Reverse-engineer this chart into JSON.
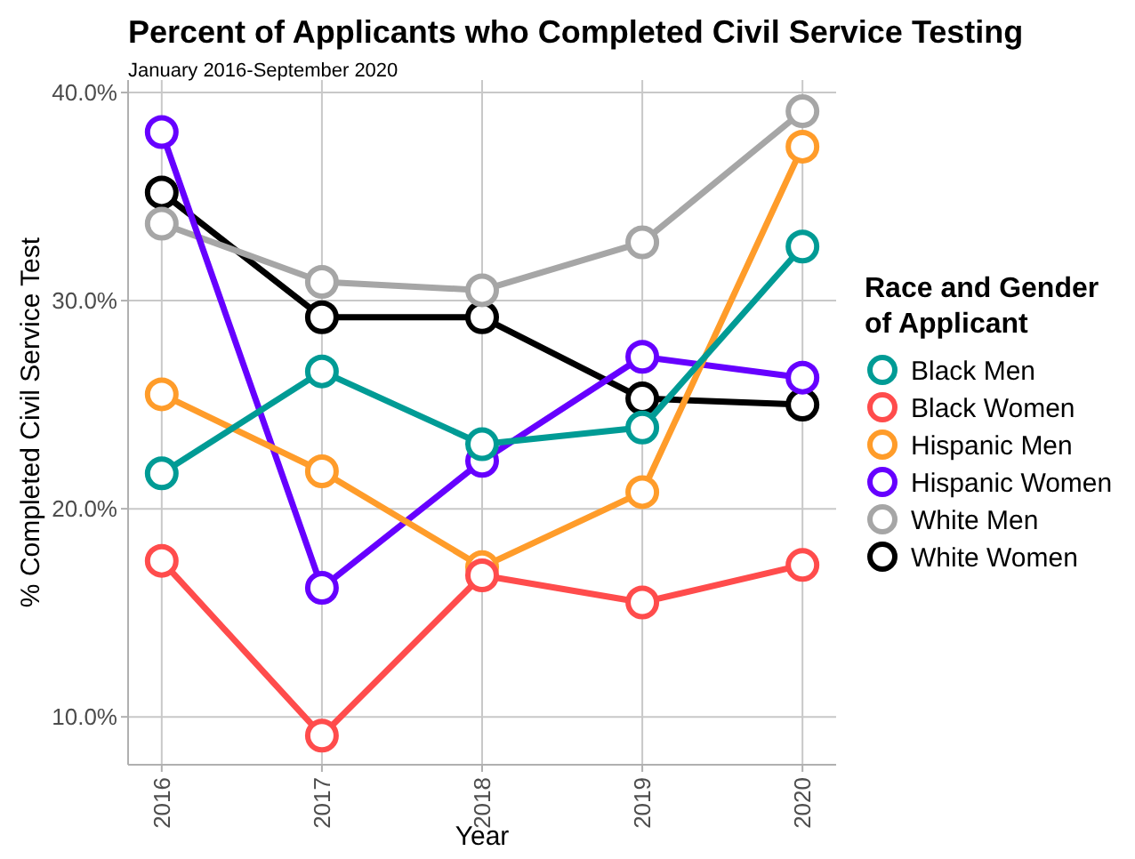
{
  "chart_data": {
    "type": "line",
    "title": "Percent of Applicants who Completed Civil Service Testing",
    "subtitle": "January 2016-September 2020",
    "xlabel": "Year",
    "ylabel": "% Completed Civil Service Test",
    "legend_title": "Race and Gender\nof Applicant",
    "x": [
      2016,
      2017,
      2018,
      2019,
      2020
    ],
    "xlim": [
      2015.79,
      2020.21
    ],
    "xticks": [
      2016,
      2017,
      2018,
      2019,
      2020
    ],
    "ylim": [
      7.7,
      40.6
    ],
    "yticks": [
      {
        "value": 10,
        "label": "10.0%"
      },
      {
        "value": 20,
        "label": "20.0%"
      },
      {
        "value": 30,
        "label": "30.0%"
      },
      {
        "value": 40,
        "label": "40.0%"
      }
    ],
    "grid": true,
    "legend": "right",
    "marker": "circle",
    "line_style": "solid",
    "series": [
      {
        "name": "Black Men",
        "color": "#009b95",
        "values": [
          21.7,
          26.6,
          23.1,
          23.9,
          32.6
        ]
      },
      {
        "name": "Black Women",
        "color": "#ff4c4c",
        "values": [
          17.5,
          9.1,
          16.8,
          15.5,
          17.3
        ]
      },
      {
        "name": "Hispanic Men",
        "color": "#ff9c2a",
        "values": [
          25.5,
          21.8,
          17.2,
          20.8,
          37.4
        ]
      },
      {
        "name": "Hispanic Women",
        "color": "#6600ff",
        "values": [
          38.1,
          16.2,
          22.3,
          27.3,
          26.3
        ]
      },
      {
        "name": "White Men",
        "color": "#a6a6a6",
        "values": [
          33.7,
          30.9,
          30.5,
          32.8,
          39.1
        ]
      },
      {
        "name": "White Women",
        "color": "#000000",
        "values": [
          35.2,
          29.2,
          29.2,
          25.3,
          25.0
        ]
      }
    ]
  }
}
